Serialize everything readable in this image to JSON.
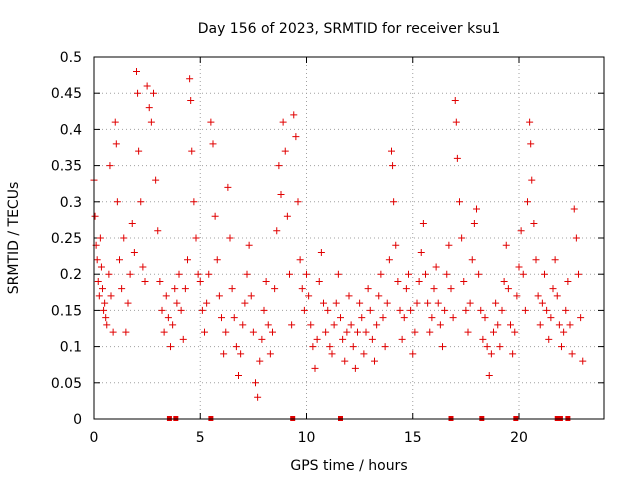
{
  "chart_data": {
    "type": "scatter",
    "title": "Day 156 of 2023, SRMTID for receiver ksu1",
    "xlabel": "GPS time / hours",
    "ylabel": "SRMTID / TECUs",
    "xlim": [
      0,
      24
    ],
    "ylim": [
      0,
      0.5
    ],
    "x_ticks": [
      0,
      5,
      10,
      15,
      20
    ],
    "x_tick_labels": [
      "0",
      "5",
      "10",
      "15",
      "20"
    ],
    "y_ticks": [
      0,
      0.05,
      0.1,
      0.15,
      0.2,
      0.25,
      0.3,
      0.35,
      0.4,
      0.45,
      0.5
    ],
    "y_tick_labels": [
      "0",
      "0.05",
      "0.1",
      "0.15",
      "0.2",
      "0.25",
      "0.3",
      "0.35",
      "0.4",
      "0.45",
      "0.5"
    ],
    "grid": true,
    "marker": "plus",
    "color": "#e00000",
    "series": [
      {
        "name": "SRMTID",
        "points": [
          [
            0.0,
            0.33
          ],
          [
            0.05,
            0.28
          ],
          [
            0.1,
            0.24
          ],
          [
            0.15,
            0.22
          ],
          [
            0.2,
            0.19
          ],
          [
            0.25,
            0.17
          ],
          [
            0.3,
            0.25
          ],
          [
            0.35,
            0.21
          ],
          [
            0.4,
            0.18
          ],
          [
            0.45,
            0.15
          ],
          [
            0.5,
            0.16
          ],
          [
            0.55,
            0.14
          ],
          [
            0.6,
            0.13
          ],
          [
            0.7,
            0.2
          ],
          [
            0.75,
            0.35
          ],
          [
            0.8,
            0.17
          ],
          [
            0.9,
            0.12
          ],
          [
            1.0,
            0.41
          ],
          [
            1.05,
            0.38
          ],
          [
            1.1,
            0.3
          ],
          [
            1.2,
            0.22
          ],
          [
            1.3,
            0.18
          ],
          [
            1.4,
            0.25
          ],
          [
            1.5,
            0.12
          ],
          [
            1.6,
            0.16
          ],
          [
            1.7,
            0.2
          ],
          [
            1.8,
            0.27
          ],
          [
            1.9,
            0.23
          ],
          [
            2.0,
            0.48
          ],
          [
            2.05,
            0.45
          ],
          [
            2.1,
            0.37
          ],
          [
            2.2,
            0.3
          ],
          [
            2.3,
            0.21
          ],
          [
            2.4,
            0.19
          ],
          [
            2.5,
            0.46
          ],
          [
            2.6,
            0.43
          ],
          [
            2.7,
            0.41
          ],
          [
            2.8,
            0.45
          ],
          [
            2.9,
            0.33
          ],
          [
            3.0,
            0.26
          ],
          [
            3.1,
            0.19
          ],
          [
            3.2,
            0.15
          ],
          [
            3.3,
            0.12
          ],
          [
            3.4,
            0.17
          ],
          [
            3.5,
            0.14
          ],
          [
            3.6,
            0.1
          ],
          [
            3.7,
            0.13
          ],
          [
            3.8,
            0.18
          ],
          [
            3.9,
            0.16
          ],
          [
            4.0,
            0.2
          ],
          [
            4.1,
            0.15
          ],
          [
            4.2,
            0.11
          ],
          [
            4.3,
            0.18
          ],
          [
            4.4,
            0.22
          ],
          [
            4.5,
            0.47
          ],
          [
            4.55,
            0.44
          ],
          [
            4.6,
            0.37
          ],
          [
            4.7,
            0.3
          ],
          [
            4.8,
            0.25
          ],
          [
            4.9,
            0.2
          ],
          [
            5.0,
            0.19
          ],
          [
            5.1,
            0.15
          ],
          [
            5.2,
            0.12
          ],
          [
            5.3,
            0.16
          ],
          [
            5.4,
            0.2
          ],
          [
            5.5,
            0.41
          ],
          [
            5.6,
            0.38
          ],
          [
            5.7,
            0.28
          ],
          [
            5.8,
            0.22
          ],
          [
            5.9,
            0.17
          ],
          [
            6.0,
            0.14
          ],
          [
            6.1,
            0.09
          ],
          [
            6.2,
            0.12
          ],
          [
            6.3,
            0.32
          ],
          [
            6.4,
            0.25
          ],
          [
            6.5,
            0.18
          ],
          [
            6.6,
            0.14
          ],
          [
            6.7,
            0.1
          ],
          [
            6.8,
            0.06
          ],
          [
            6.9,
            0.09
          ],
          [
            7.0,
            0.13
          ],
          [
            7.1,
            0.16
          ],
          [
            7.2,
            0.2
          ],
          [
            7.3,
            0.24
          ],
          [
            7.4,
            0.17
          ],
          [
            7.5,
            0.12
          ],
          [
            7.6,
            0.05
          ],
          [
            7.7,
            0.03
          ],
          [
            7.8,
            0.08
          ],
          [
            7.9,
            0.11
          ],
          [
            8.0,
            0.15
          ],
          [
            8.1,
            0.19
          ],
          [
            8.2,
            0.13
          ],
          [
            8.3,
            0.09
          ],
          [
            8.4,
            0.12
          ],
          [
            8.5,
            0.18
          ],
          [
            8.6,
            0.26
          ],
          [
            8.7,
            0.35
          ],
          [
            8.8,
            0.31
          ],
          [
            8.9,
            0.41
          ],
          [
            9.0,
            0.37
          ],
          [
            9.1,
            0.28
          ],
          [
            9.2,
            0.2
          ],
          [
            9.3,
            0.13
          ],
          [
            9.4,
            0.42
          ],
          [
            9.5,
            0.39
          ],
          [
            9.6,
            0.3
          ],
          [
            9.7,
            0.22
          ],
          [
            9.8,
            0.18
          ],
          [
            9.9,
            0.15
          ],
          [
            10.0,
            0.2
          ],
          [
            10.1,
            0.17
          ],
          [
            10.2,
            0.13
          ],
          [
            10.3,
            0.1
          ],
          [
            10.4,
            0.07
          ],
          [
            10.5,
            0.11
          ],
          [
            10.6,
            0.19
          ],
          [
            10.7,
            0.23
          ],
          [
            10.8,
            0.16
          ],
          [
            10.9,
            0.12
          ],
          [
            11.0,
            0.15
          ],
          [
            11.1,
            0.1
          ],
          [
            11.2,
            0.09
          ],
          [
            11.3,
            0.13
          ],
          [
            11.4,
            0.16
          ],
          [
            11.5,
            0.2
          ],
          [
            11.6,
            0.14
          ],
          [
            11.7,
            0.11
          ],
          [
            11.8,
            0.08
          ],
          [
            11.9,
            0.12
          ],
          [
            12.0,
            0.17
          ],
          [
            12.1,
            0.13
          ],
          [
            12.2,
            0.1
          ],
          [
            12.3,
            0.07
          ],
          [
            12.4,
            0.12
          ],
          [
            12.5,
            0.16
          ],
          [
            12.6,
            0.14
          ],
          [
            12.7,
            0.09
          ],
          [
            12.8,
            0.12
          ],
          [
            12.9,
            0.18
          ],
          [
            13.0,
            0.15
          ],
          [
            13.1,
            0.11
          ],
          [
            13.2,
            0.08
          ],
          [
            13.3,
            0.13
          ],
          [
            13.4,
            0.17
          ],
          [
            13.5,
            0.2
          ],
          [
            13.6,
            0.14
          ],
          [
            13.7,
            0.1
          ],
          [
            13.8,
            0.16
          ],
          [
            13.9,
            0.22
          ],
          [
            14.0,
            0.37
          ],
          [
            14.05,
            0.35
          ],
          [
            14.1,
            0.3
          ],
          [
            14.2,
            0.24
          ],
          [
            14.3,
            0.19
          ],
          [
            14.4,
            0.15
          ],
          [
            14.5,
            0.11
          ],
          [
            14.6,
            0.14
          ],
          [
            14.7,
            0.18
          ],
          [
            14.8,
            0.2
          ],
          [
            14.9,
            0.15
          ],
          [
            15.0,
            0.09
          ],
          [
            15.1,
            0.12
          ],
          [
            15.2,
            0.16
          ],
          [
            15.3,
            0.19
          ],
          [
            15.4,
            0.23
          ],
          [
            15.5,
            0.27
          ],
          [
            15.6,
            0.2
          ],
          [
            15.7,
            0.16
          ],
          [
            15.8,
            0.12
          ],
          [
            15.9,
            0.14
          ],
          [
            16.0,
            0.18
          ],
          [
            16.1,
            0.21
          ],
          [
            16.2,
            0.16
          ],
          [
            16.3,
            0.13
          ],
          [
            16.4,
            0.1
          ],
          [
            16.5,
            0.15
          ],
          [
            16.6,
            0.2
          ],
          [
            16.7,
            0.24
          ],
          [
            16.8,
            0.18
          ],
          [
            16.9,
            0.14
          ],
          [
            17.0,
            0.44
          ],
          [
            17.05,
            0.41
          ],
          [
            17.1,
            0.36
          ],
          [
            17.2,
            0.3
          ],
          [
            17.3,
            0.25
          ],
          [
            17.4,
            0.19
          ],
          [
            17.5,
            0.15
          ],
          [
            17.6,
            0.12
          ],
          [
            17.7,
            0.16
          ],
          [
            17.8,
            0.22
          ],
          [
            17.9,
            0.27
          ],
          [
            18.0,
            0.29
          ],
          [
            18.1,
            0.2
          ],
          [
            18.2,
            0.15
          ],
          [
            18.3,
            0.11
          ],
          [
            18.4,
            0.14
          ],
          [
            18.5,
            0.1
          ],
          [
            18.6,
            0.06
          ],
          [
            18.7,
            0.09
          ],
          [
            18.8,
            0.12
          ],
          [
            18.9,
            0.16
          ],
          [
            19.0,
            0.13
          ],
          [
            19.1,
            0.1
          ],
          [
            19.2,
            0.15
          ],
          [
            19.3,
            0.19
          ],
          [
            19.4,
            0.24
          ],
          [
            19.5,
            0.18
          ],
          [
            19.6,
            0.13
          ],
          [
            19.7,
            0.09
          ],
          [
            19.8,
            0.12
          ],
          [
            19.9,
            0.17
          ],
          [
            20.0,
            0.21
          ],
          [
            20.1,
            0.26
          ],
          [
            20.2,
            0.2
          ],
          [
            20.3,
            0.15
          ],
          [
            20.4,
            0.3
          ],
          [
            20.5,
            0.41
          ],
          [
            20.55,
            0.38
          ],
          [
            20.6,
            0.33
          ],
          [
            20.7,
            0.27
          ],
          [
            20.8,
            0.22
          ],
          [
            20.9,
            0.17
          ],
          [
            21.0,
            0.13
          ],
          [
            21.1,
            0.16
          ],
          [
            21.2,
            0.2
          ],
          [
            21.3,
            0.15
          ],
          [
            21.4,
            0.11
          ],
          [
            21.5,
            0.14
          ],
          [
            21.6,
            0.18
          ],
          [
            21.7,
            0.22
          ],
          [
            21.8,
            0.17
          ],
          [
            21.9,
            0.13
          ],
          [
            22.0,
            0.1
          ],
          [
            22.1,
            0.12
          ],
          [
            22.2,
            0.15
          ],
          [
            22.3,
            0.19
          ],
          [
            22.4,
            0.13
          ],
          [
            22.5,
            0.09
          ],
          [
            22.6,
            0.29
          ],
          [
            22.7,
            0.25
          ],
          [
            22.8,
            0.2
          ],
          [
            22.9,
            0.14
          ],
          [
            23.0,
            0.08
          ]
        ]
      }
    ],
    "axis_markers": {
      "name": "data gaps",
      "x": [
        3.55,
        3.85,
        5.5,
        9.35,
        11.6,
        16.8,
        18.25,
        19.85,
        21.8,
        21.95,
        22.3
      ]
    }
  }
}
